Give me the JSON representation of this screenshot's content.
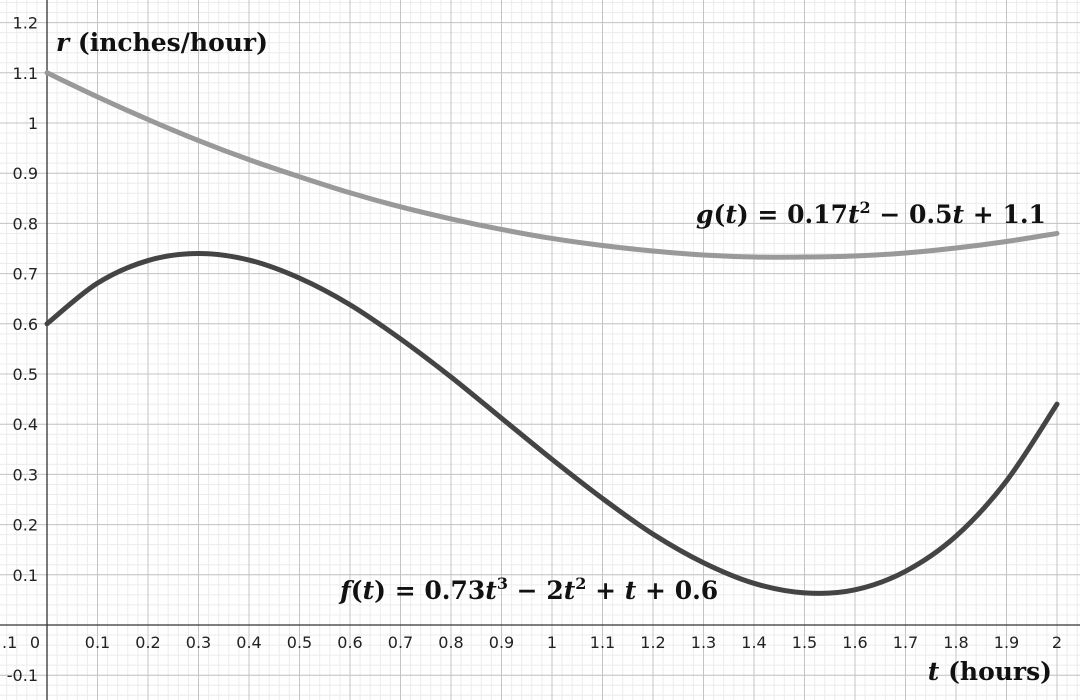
{
  "chart_data": {
    "type": "line",
    "x_label": {
      "var": "t",
      "units": " (hours)"
    },
    "y_label": {
      "var": "r",
      "units": " (inches/hour)"
    },
    "xlim": [
      -0.1,
      2.05
    ],
    "ylim": [
      -0.15,
      1.24
    ],
    "x_ticks": [
      "0.1",
      "0.2",
      "0.3",
      "0.4",
      "0.5",
      "0.6",
      "0.7",
      "0.8",
      "0.9",
      "1",
      "1.1",
      "1.2",
      "1.3",
      "1.4",
      "1.5",
      "1.6",
      "1.7",
      "1.8",
      "1.9",
      "2"
    ],
    "x_tick_values": [
      0.1,
      0.2,
      0.3,
      0.4,
      0.5,
      0.6,
      0.7,
      0.8,
      0.9,
      1,
      1.1,
      1.2,
      1.3,
      1.4,
      1.5,
      1.6,
      1.7,
      1.8,
      1.9,
      2
    ],
    "x_edge_tick": ".1",
    "origin_label": "0",
    "y_ticks": [
      "1.2",
      "1.1",
      "1",
      "0.9",
      "0.8",
      "0.7",
      "0.6",
      "0.5",
      "0.4",
      "0.3",
      "0.2",
      "0.1",
      "-0.1"
    ],
    "y_tick_values": [
      1.2,
      1.1,
      1,
      0.9,
      0.8,
      0.7,
      0.6,
      0.5,
      0.4,
      0.3,
      0.2,
      0.1,
      -0.1
    ],
    "grid": true,
    "series": [
      {
        "name": "g(t) = 0.17t² − 0.5t + 1.1",
        "color": "#999999",
        "x": [
          0,
          0.1,
          0.2,
          0.3,
          0.4,
          0.5,
          0.6,
          0.7,
          0.8,
          0.9,
          1,
          1.1,
          1.2,
          1.3,
          1.4,
          1.5,
          1.6,
          1.7,
          1.8,
          1.9,
          2
        ],
        "y": [
          1.1,
          1.052,
          1.007,
          0.965,
          0.927,
          0.893,
          0.861,
          0.833,
          0.809,
          0.788,
          0.77,
          0.756,
          0.745,
          0.737,
          0.733,
          0.733,
          0.735,
          0.741,
          0.751,
          0.764,
          0.78
        ]
      },
      {
        "name": "f(t) = 0.73t³ − 2t² + t + 0.6",
        "color": "#444444",
        "x": [
          0,
          0.1,
          0.2,
          0.3,
          0.4,
          0.5,
          0.6,
          0.7,
          0.8,
          0.9,
          1,
          1.1,
          1.2,
          1.3,
          1.4,
          1.5,
          1.6,
          1.7,
          1.8,
          1.9,
          2
        ],
        "y": [
          0.6,
          0.681,
          0.726,
          0.74,
          0.727,
          0.691,
          0.638,
          0.57,
          0.494,
          0.412,
          0.33,
          0.252,
          0.181,
          0.124,
          0.083,
          0.064,
          0.07,
          0.107,
          0.177,
          0.287,
          0.44
        ]
      }
    ],
    "annotations": {
      "g_label": {
        "fn": "g",
        "var": "t",
        "c1": "0.17",
        "p1": "2",
        "op1": " − ",
        "c2": "0.5",
        "op2": " + ",
        "c3": "1.1"
      },
      "f_label": {
        "fn": "f",
        "var": "t",
        "c1": "0.73",
        "p1": "3",
        "op1": " − ",
        "c2": "2",
        "p2": "2",
        "op2": " + ",
        "op3": " + ",
        "c3": "0.6"
      }
    }
  }
}
